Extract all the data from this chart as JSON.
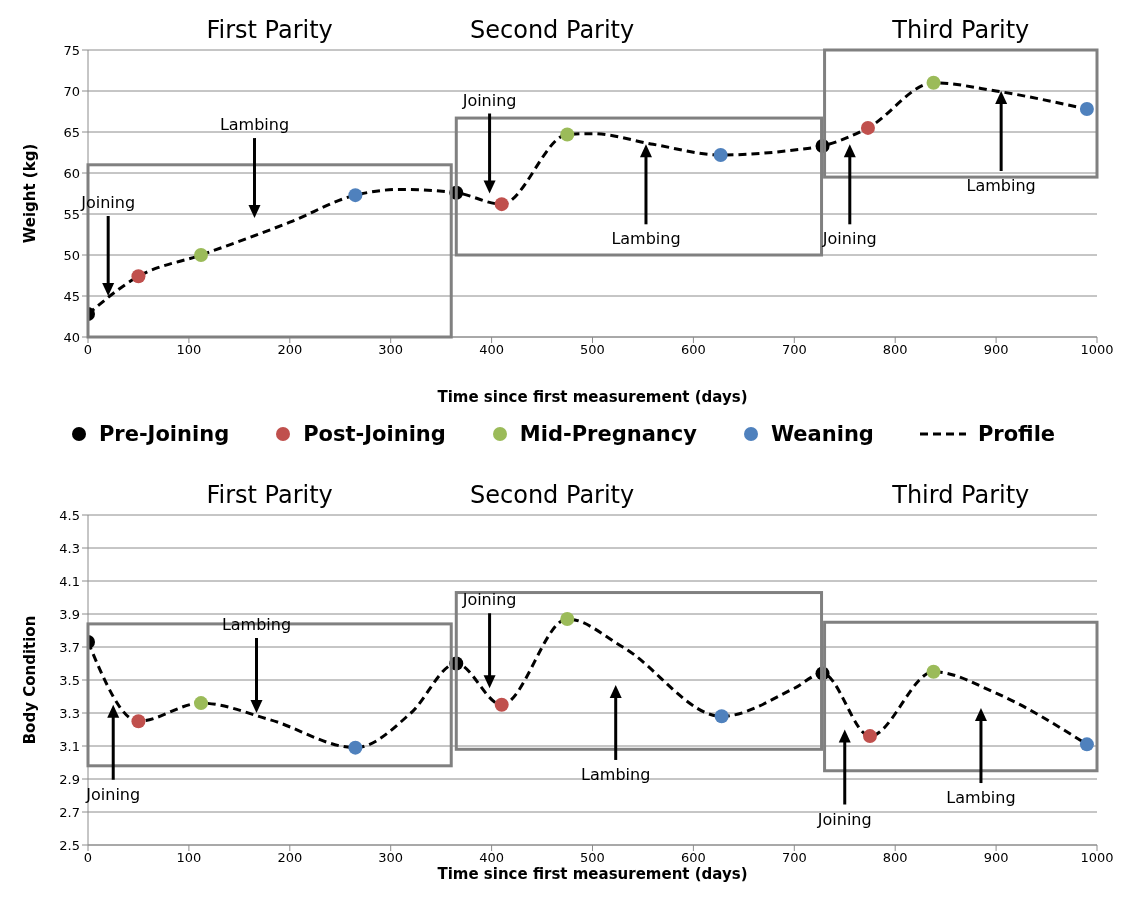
{
  "chart_data": [
    {
      "type": "scatter",
      "xlabel": "Time since first measurement (days)",
      "ylabel": "Weight (kg)",
      "xlim": [
        0,
        1000
      ],
      "xticks": [
        0,
        100,
        200,
        300,
        400,
        500,
        600,
        700,
        800,
        900,
        1000
      ],
      "ylim": [
        40,
        75
      ],
      "yticks": [
        40,
        45,
        50,
        55,
        60,
        65,
        70,
        75
      ],
      "grid": "y",
      "legend": "bottom",
      "marker": "circle",
      "series": [
        {
          "name": "Pre-Joining",
          "color": "#000000",
          "x": [
            0,
            365,
            728
          ],
          "values": [
            42.8,
            57.6,
            63.3
          ]
        },
        {
          "name": "Post-Joining",
          "color": "#c0504d",
          "x": [
            50,
            410,
            773
          ],
          "values": [
            47.4,
            56.2,
            65.5
          ]
        },
        {
          "name": "Mid-Pregnancy",
          "color": "#9bbb59",
          "x": [
            112,
            475,
            838
          ],
          "values": [
            50.0,
            64.7,
            71.0
          ]
        },
        {
          "name": "Weaning",
          "color": "#4f81bd",
          "x": [
            265,
            627,
            990
          ],
          "values": [
            57.3,
            62.2,
            67.8
          ]
        },
        {
          "name": "Profile",
          "type": "line",
          "line_style": "dashed",
          "marker": "none",
          "color": "#000000",
          "x": [
            0,
            50,
            112,
            200,
            265,
            310,
            365,
            410,
            475,
            500,
            560,
            627,
            700,
            728,
            773,
            838,
            900,
            990
          ],
          "values": [
            42.8,
            47.4,
            50.0,
            54.0,
            57.3,
            58.0,
            57.6,
            56.2,
            64.7,
            64.8,
            63.5,
            62.2,
            62.8,
            63.3,
            65.5,
            71.0,
            70.0,
            67.8
          ]
        }
      ],
      "annotations": [
        "First Parity",
        "Second Parity",
        "Third Parity",
        "Joining",
        "Lambing",
        "Joining",
        "Lambing",
        "Joining",
        "Lambing"
      ]
    },
    {
      "type": "scatter",
      "xlabel": "Time since first measurement (days)",
      "ylabel": "Body Condition",
      "xlim": [
        0,
        1000
      ],
      "xticks": [
        0,
        100,
        200,
        300,
        400,
        500,
        600,
        700,
        800,
        900,
        1000
      ],
      "ylim": [
        2.5,
        4.5
      ],
      "yticks": [
        2.5,
        2.7,
        2.9,
        3.1,
        3.3,
        3.5,
        3.7,
        3.9,
        4.1,
        4.3,
        4.5
      ],
      "grid": "y",
      "marker": "circle",
      "series": [
        {
          "color": "#000000",
          "x": [
            0,
            365,
            728
          ],
          "values": [
            3.73,
            3.6,
            3.54
          ]
        },
        {
          "color": "#c0504d",
          "x": [
            50,
            410,
            775
          ],
          "values": [
            3.25,
            3.35,
            3.16
          ]
        },
        {
          "color": "#9bbb59",
          "x": [
            112,
            475,
            838
          ],
          "values": [
            3.36,
            3.87,
            3.55
          ]
        },
        {
          "color": "#4f81bd",
          "x": [
            265,
            628,
            990
          ],
          "values": [
            3.09,
            3.28,
            3.11
          ]
        },
        {
          "type": "line",
          "line_style": "dashed",
          "marker": "none",
          "color": "#000000",
          "x": [
            0,
            50,
            112,
            180,
            265,
            320,
            365,
            410,
            475,
            530,
            628,
            700,
            728,
            775,
            838,
            900,
            990
          ],
          "values": [
            3.73,
            3.25,
            3.36,
            3.26,
            3.09,
            3.3,
            3.6,
            3.35,
            3.87,
            3.7,
            3.28,
            3.45,
            3.54,
            3.16,
            3.55,
            3.42,
            3.11
          ]
        }
      ],
      "annotations": [
        "First Parity",
        "Second Parity",
        "Third Parity",
        "Joining",
        "Lambing",
        "Joining",
        "Lambing",
        "Joining",
        "Lambing"
      ]
    }
  ]
}
